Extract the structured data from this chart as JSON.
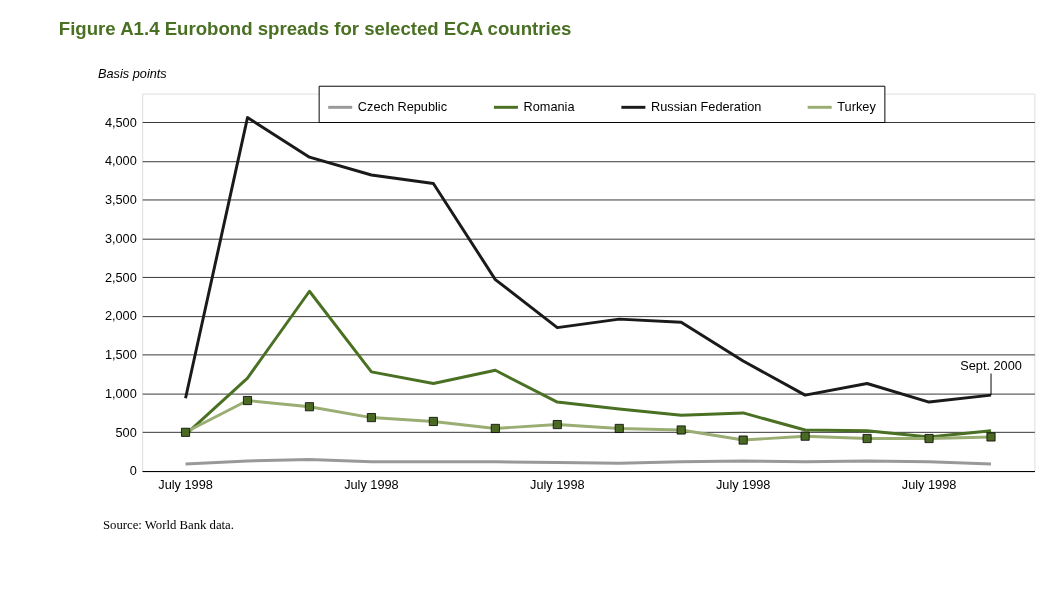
{
  "chart_data": {
    "type": "line",
    "title": "Figure A1.4   Eurobond spreads for selected ECA countries",
    "ylabel": "Basis points",
    "categories": [
      "July 1998",
      null,
      null,
      "July 1998",
      null,
      null,
      "July 1998",
      null,
      null,
      "July 1998",
      null,
      null,
      "July 1998",
      null
    ],
    "series": [
      {
        "name": "Czech Republic",
        "color": "#999999",
        "values": [
          90,
          130,
          150,
          120,
          120,
          120,
          110,
          100,
          120,
          130,
          120,
          130,
          120,
          90
        ]
      },
      {
        "name": "Romania",
        "color": "#4a7023",
        "values": [
          470,
          1200,
          2320,
          1280,
          1130,
          1300,
          890,
          800,
          720,
          750,
          530,
          520,
          440,
          520
        ]
      },
      {
        "name": "Russian Federation",
        "color": "#1a1a1a",
        "values": [
          940,
          4560,
          4050,
          3820,
          3710,
          2470,
          1850,
          1960,
          1920,
          1420,
          980,
          1130,
          890,
          980
        ]
      },
      {
        "name": "Turkey",
        "color": "#9aad73",
        "marker": "square",
        "values": [
          500,
          910,
          830,
          690,
          640,
          550,
          600,
          550,
          530,
          400,
          450,
          420,
          420,
          440
        ]
      }
    ],
    "ylim": [
      0,
      4870
    ],
    "yticks": [
      {
        "value": 0,
        "label": "0"
      },
      {
        "value": 500,
        "label": "500"
      },
      {
        "value": 1000,
        "label": "1,000"
      },
      {
        "value": 1500,
        "label": "1,500"
      },
      {
        "value": 2000,
        "label": "2,000"
      },
      {
        "value": 2500,
        "label": "2,500"
      },
      {
        "value": 3000,
        "label": "3,000"
      },
      {
        "value": 3500,
        "label": "3,500"
      },
      {
        "value": 4000,
        "label": "4,000"
      },
      {
        "value": 4500,
        "label": "4,500"
      }
    ],
    "grid": "y",
    "legend": "top",
    "annotations": [
      {
        "text": "Sept. 2000",
        "y": 980
      },
      "Source: World Bank data."
    ]
  }
}
